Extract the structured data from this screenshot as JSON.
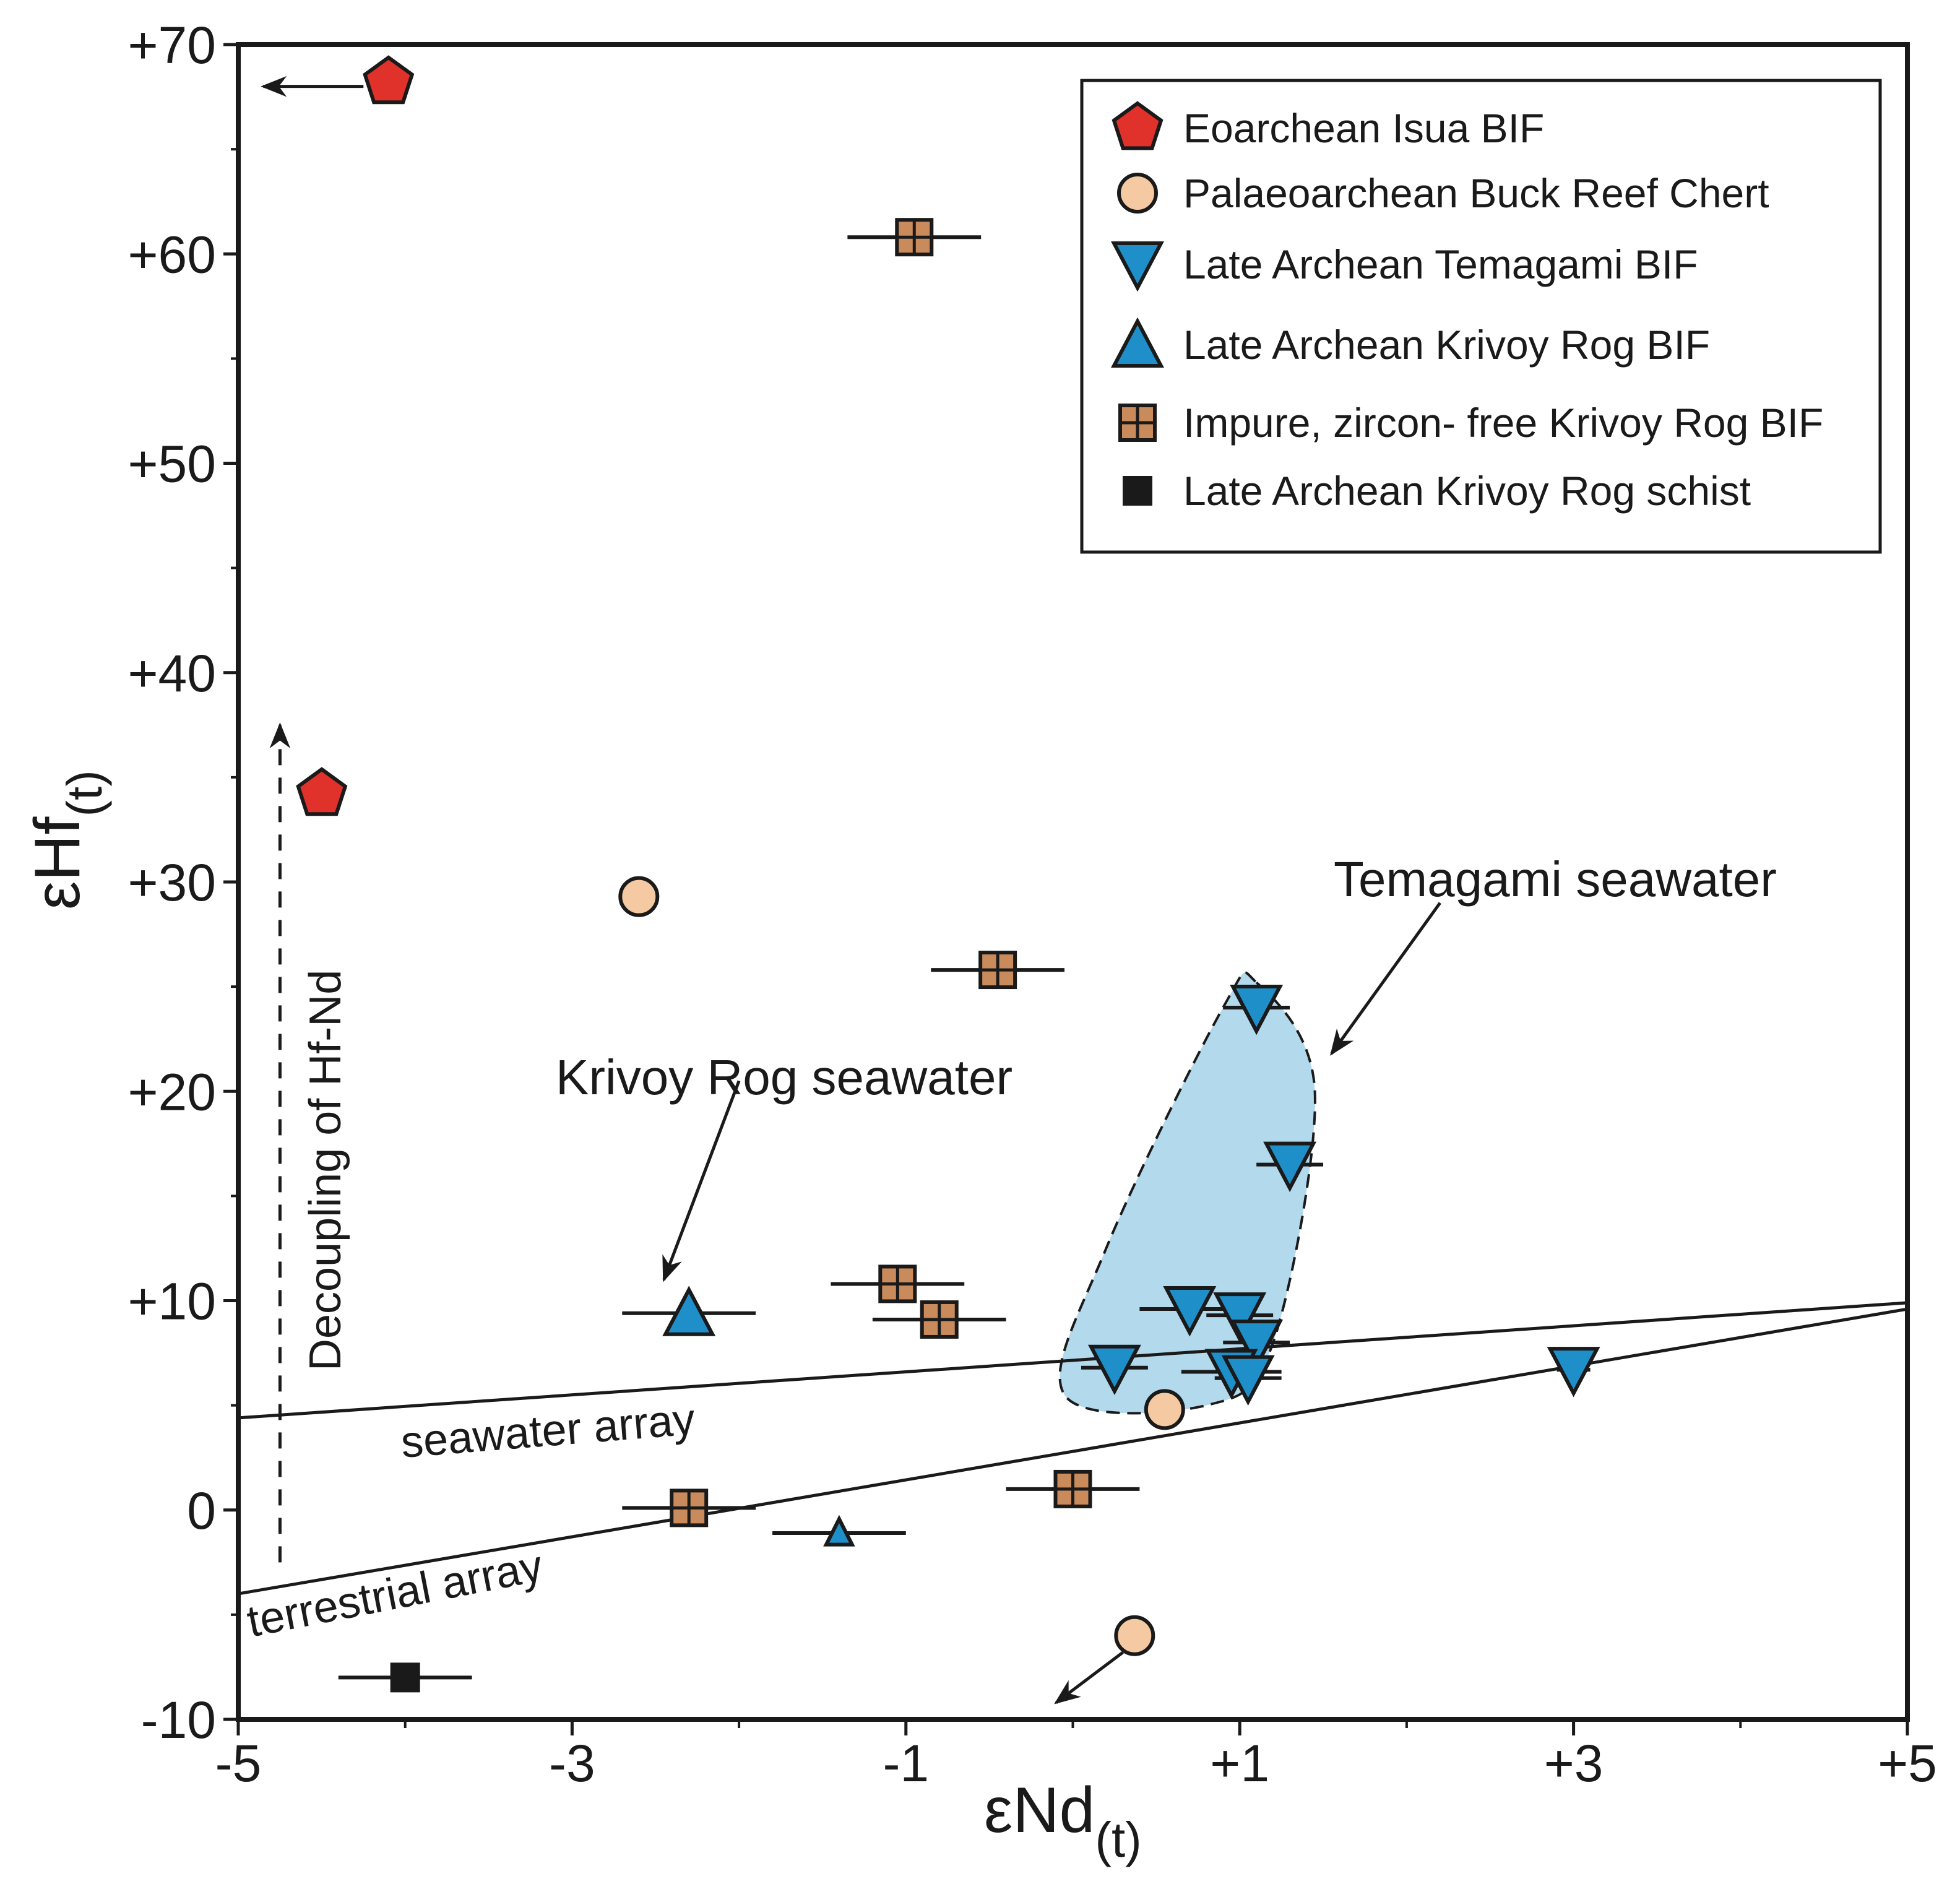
{
  "chart_data": {
    "type": "scatter",
    "title": "",
    "xlabel": "εNd",
    "xlabel_sub": "(t)",
    "ylabel": "εHf",
    "ylabel_sub": "(t)",
    "xlim": [
      -5,
      5
    ],
    "ylim": [
      -10,
      70
    ],
    "x_ticks": [
      -5,
      -3,
      -1,
      1,
      3,
      5
    ],
    "x_tick_labels": [
      "-5",
      "-3",
      "-1",
      "+1",
      "+3",
      "+5"
    ],
    "y_ticks": [
      70,
      60,
      50,
      40,
      30,
      20,
      10,
      0,
      -10
    ],
    "y_tick_labels": [
      "+70",
      "+60",
      "+50",
      "+40",
      "+30",
      "+20",
      "+10",
      "0",
      "-10"
    ],
    "grid": false,
    "legend_position": "top-right",
    "series": [
      {
        "name": "Eoarchean Isua BIF",
        "marker": "pentagon",
        "color": "#e0312b",
        "points": [
          {
            "x": -4.1,
            "y": 68.2,
            "xerr": 0
          },
          {
            "x": -4.5,
            "y": 34.2,
            "xerr": 0
          }
        ]
      },
      {
        "name": "Palaeoarchean Buck Reef Chert",
        "marker": "circle",
        "color": "#f5c9a2",
        "points": [
          {
            "x": -2.6,
            "y": 29.3,
            "xerr": 0
          },
          {
            "x": 0.55,
            "y": 4.8,
            "xerr": 0
          },
          {
            "x": 0.37,
            "y": -6.0,
            "xerr": 0
          }
        ]
      },
      {
        "name": "Late Archean Temagami BIF",
        "marker": "triangle-down",
        "color": "#1f8fc9",
        "points": [
          {
            "x": 1.1,
            "y": 24.0,
            "xerr": 0.2
          },
          {
            "x": 1.3,
            "y": 16.5,
            "xerr": 0.2
          },
          {
            "x": 0.7,
            "y": 9.6,
            "xerr": 0.3
          },
          {
            "x": 1.0,
            "y": 9.3,
            "xerr": 0.2
          },
          {
            "x": 1.1,
            "y": 8.0,
            "xerr": 0.2
          },
          {
            "x": 0.25,
            "y": 6.8,
            "xerr": 0.2
          },
          {
            "x": 0.95,
            "y": 6.6,
            "xerr": 0.3
          },
          {
            "x": 1.05,
            "y": 6.3,
            "xerr": 0.2
          },
          {
            "x": 3.0,
            "y": 6.7,
            "xerr": 0.1
          }
        ]
      },
      {
        "name": "Late Archean Krivoy Rog BIF",
        "marker": "triangle-up",
        "color": "#1f8fc9",
        "points": [
          {
            "x": -2.3,
            "y": 9.4,
            "xerr": 0.4
          },
          {
            "x": -1.4,
            "y": -1.1,
            "xerr": 0.4,
            "size": "small"
          }
        ]
      },
      {
        "name": "Impure, zircon- free Krivoy Rog BIF",
        "marker": "crossed-square",
        "color": "#c98a5c",
        "points": [
          {
            "x": -0.95,
            "y": 60.8,
            "xerr": 0.4
          },
          {
            "x": -0.45,
            "y": 25.8,
            "xerr": 0.4
          },
          {
            "x": -1.05,
            "y": 10.8,
            "xerr": 0.4
          },
          {
            "x": -0.8,
            "y": 9.1,
            "xerr": 0.4
          },
          {
            "x": -2.3,
            "y": 0.1,
            "xerr": 0.4
          },
          {
            "x": 0.0,
            "y": 1.0,
            "xerr": 0.4
          }
        ]
      },
      {
        "name": "Late Archean Krivoy Rog schist",
        "marker": "square",
        "color": "#1a1a1a",
        "points": [
          {
            "x": -4.0,
            "y": -8.0,
            "xerr": 0.4
          }
        ]
      }
    ],
    "lines": [
      {
        "name": "seawater array",
        "x": [
          -5,
          5
        ],
        "y": [
          4.4,
          9.9
        ]
      },
      {
        "name": "terrestrial array",
        "x": [
          -5,
          5
        ],
        "y": [
          -4.0,
          9.6
        ]
      }
    ],
    "annotations": [
      {
        "text": "Temagami seawater"
      },
      {
        "text": "Krivoy Rog seawater"
      },
      {
        "text": "seawater array"
      },
      {
        "text": "terrestrial array"
      },
      {
        "text": "Decoupling of Hf-Nd"
      }
    ],
    "region": {
      "name": "Temagami seawater field",
      "color": "#b3d9ec",
      "polygon": [
        [
          1.1,
          25.2
        ],
        [
          1.45,
          20.0
        ],
        [
          1.2,
          8.0
        ],
        [
          0.8,
          5.0
        ],
        [
          -0.05,
          5.5
        ],
        [
          0.2,
          12.5
        ],
        [
          0.9,
          24.0
        ]
      ]
    },
    "arrows": [
      {
        "from": [
          -4.25,
          68.0
        ],
        "to": [
          -4.85,
          68.0
        ],
        "style": "solid",
        "purpose": "offscale-left"
      },
      {
        "from": [
          0.3,
          -6.8
        ],
        "to": [
          -0.1,
          -9.2
        ],
        "style": "solid",
        "purpose": "offscale-down"
      },
      {
        "from": [
          -4.75,
          -2.5
        ],
        "to": [
          -4.75,
          37.5
        ],
        "style": "dashed",
        "purpose": "decoupling"
      },
      {
        "from": [
          -2.0,
          20.5
        ],
        "to": [
          -2.45,
          11.0
        ],
        "style": "solid",
        "purpose": "krivoy-rog"
      },
      {
        "from": [
          2.2,
          29.0
        ],
        "to": [
          1.55,
          21.8
        ],
        "style": "solid",
        "purpose": "temagami"
      }
    ]
  }
}
